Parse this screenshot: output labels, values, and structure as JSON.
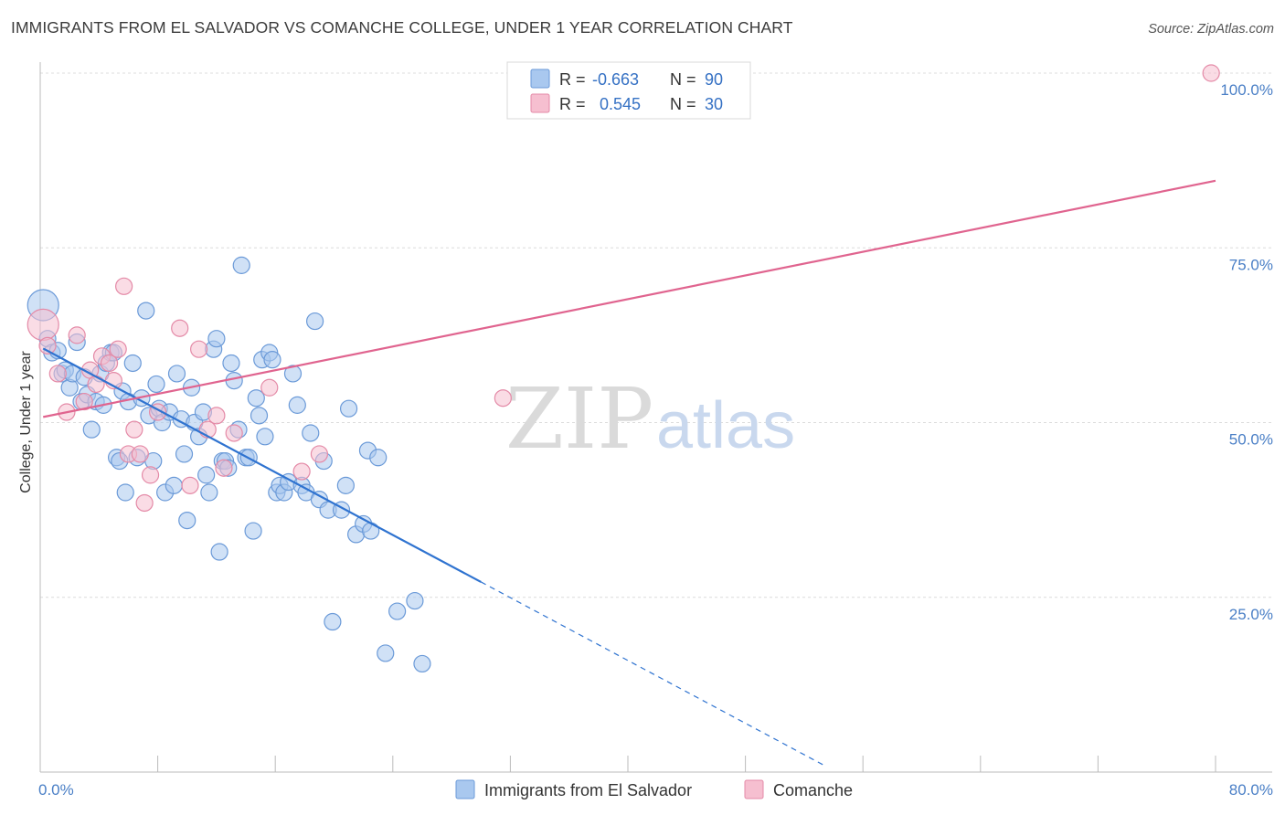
{
  "header": {
    "title": "IMMIGRANTS FROM EL SALVADOR VS COMANCHE COLLEGE, UNDER 1 YEAR CORRELATION CHART",
    "source": "Source: ZipAtlas.com"
  },
  "watermark": {
    "zip": "ZIP",
    "atlas": "atlas"
  },
  "legend": {
    "rows": [
      {
        "r_label": "R =",
        "r_value": "-0.663",
        "n_label": "N =",
        "n_value": "90",
        "color": "#a9c8ef",
        "stroke": "#6b9ad8"
      },
      {
        "r_label": "R =",
        "r_value": "0.545",
        "n_label": "N =",
        "n_value": "30",
        "color": "#f6bfd0",
        "stroke": "#e48aa7"
      }
    ]
  },
  "chart_data": {
    "type": "scatter",
    "title": "IMMIGRANTS FROM EL SALVADOR VS COMANCHE COLLEGE, UNDER 1 YEAR CORRELATION CHART",
    "xlabel": "",
    "ylabel": "College, Under 1 year",
    "xlim": [
      0,
      80
    ],
    "ylim": [
      0,
      100
    ],
    "x_ticks": [
      "0.0%",
      "80.0%"
    ],
    "y_ticks": [
      {
        "value": 25,
        "label": "25.0%"
      },
      {
        "value": 50,
        "label": "50.0%"
      },
      {
        "value": 75,
        "label": "75.0%"
      },
      {
        "value": 100,
        "label": "100.0%"
      }
    ],
    "grid": true,
    "legend_position": "bottom",
    "series": [
      {
        "name": "Immigrants from El Salvador",
        "color": "#a9c8ef",
        "stroke": "#6b9ad8",
        "line_color": "#2f73d0",
        "trend": {
          "x_start": 0.2,
          "y_start": 60.6,
          "x_solid_end": 30,
          "y_solid_end": 27.2,
          "x_dash_end": 53.5,
          "y_dash_end": 0.8
        },
        "points": [
          [
            0.2,
            66.8,
            "big"
          ],
          [
            0.5,
            62.0
          ],
          [
            0.8,
            60.0
          ],
          [
            1.2,
            60.3
          ],
          [
            1.5,
            57.0
          ],
          [
            1.7,
            57.5
          ],
          [
            2.0,
            55.0
          ],
          [
            2.2,
            57.0
          ],
          [
            2.5,
            61.5
          ],
          [
            2.8,
            53.0
          ],
          [
            3.0,
            56.5
          ],
          [
            3.2,
            54.0
          ],
          [
            3.5,
            49.0
          ],
          [
            3.8,
            53.0
          ],
          [
            4.1,
            57.0
          ],
          [
            4.3,
            52.5
          ],
          [
            4.5,
            58.5
          ],
          [
            4.8,
            60.0
          ],
          [
            5.0,
            60.0
          ],
          [
            5.2,
            45.0
          ],
          [
            5.4,
            44.5
          ],
          [
            5.6,
            54.5
          ],
          [
            5.8,
            40.0
          ],
          [
            6.0,
            53.0
          ],
          [
            6.3,
            58.5
          ],
          [
            6.6,
            45.0
          ],
          [
            6.9,
            53.5
          ],
          [
            7.2,
            66.0
          ],
          [
            7.4,
            51.0
          ],
          [
            7.7,
            44.5
          ],
          [
            7.9,
            55.5
          ],
          [
            8.1,
            52.0
          ],
          [
            8.3,
            50.0
          ],
          [
            8.5,
            40.0
          ],
          [
            8.8,
            51.5
          ],
          [
            9.1,
            41.0
          ],
          [
            9.3,
            57.0
          ],
          [
            9.6,
            50.5
          ],
          [
            9.8,
            45.5
          ],
          [
            10.0,
            36.0
          ],
          [
            10.3,
            55.0
          ],
          [
            10.5,
            50.0
          ],
          [
            10.8,
            48.0
          ],
          [
            11.1,
            51.5
          ],
          [
            11.3,
            42.5
          ],
          [
            11.5,
            40.0
          ],
          [
            11.8,
            60.5
          ],
          [
            12.0,
            62.0
          ],
          [
            12.2,
            31.5
          ],
          [
            12.4,
            44.5
          ],
          [
            12.6,
            44.5
          ],
          [
            12.8,
            43.5
          ],
          [
            13.0,
            58.5
          ],
          [
            13.2,
            56.0
          ],
          [
            13.5,
            49.0
          ],
          [
            13.7,
            72.5
          ],
          [
            14.0,
            45.0
          ],
          [
            14.2,
            45.0
          ],
          [
            14.5,
            34.5
          ],
          [
            14.7,
            53.5
          ],
          [
            14.9,
            51.0
          ],
          [
            15.1,
            59.0
          ],
          [
            15.3,
            48.0
          ],
          [
            15.6,
            60.0
          ],
          [
            15.8,
            59.0
          ],
          [
            16.1,
            40.0
          ],
          [
            16.3,
            41.0
          ],
          [
            16.6,
            40.0
          ],
          [
            16.9,
            41.5
          ],
          [
            17.2,
            57.0
          ],
          [
            17.5,
            52.5
          ],
          [
            17.8,
            41.0
          ],
          [
            18.1,
            40.0
          ],
          [
            18.4,
            48.5
          ],
          [
            18.7,
            64.5
          ],
          [
            19.0,
            39.0
          ],
          [
            19.3,
            44.5
          ],
          [
            19.6,
            37.5
          ],
          [
            19.9,
            21.5
          ],
          [
            20.5,
            37.5
          ],
          [
            21.0,
            52.0
          ],
          [
            20.8,
            41.0
          ],
          [
            21.5,
            34.0
          ],
          [
            22.0,
            35.5
          ],
          [
            22.5,
            34.5
          ],
          [
            22.3,
            46.0
          ],
          [
            23.0,
            45.0
          ],
          [
            23.5,
            17.0
          ],
          [
            24.3,
            23.0
          ],
          [
            25.5,
            24.5
          ],
          [
            26.0,
            15.5
          ]
        ]
      },
      {
        "name": "Comanche",
        "color": "#f6bfd0",
        "stroke": "#e48aa7",
        "line_color": "#e0648f",
        "trend": {
          "x_start": 0.2,
          "y_start": 50.8,
          "x_end": 80,
          "y_end": 84.6
        },
        "points": [
          [
            0.2,
            64.0,
            "big"
          ],
          [
            0.5,
            61.0
          ],
          [
            1.2,
            57.0
          ],
          [
            1.8,
            51.5
          ],
          [
            2.5,
            62.5
          ],
          [
            3.0,
            53.0
          ],
          [
            3.4,
            57.5
          ],
          [
            3.8,
            55.5
          ],
          [
            4.2,
            59.5
          ],
          [
            4.7,
            58.5
          ],
          [
            5.0,
            56.0
          ],
          [
            5.3,
            60.5
          ],
          [
            5.7,
            69.5
          ],
          [
            6.0,
            45.5
          ],
          [
            6.4,
            49.0
          ],
          [
            6.8,
            45.5
          ],
          [
            7.1,
            38.5
          ],
          [
            7.5,
            42.5
          ],
          [
            8.0,
            51.5
          ],
          [
            9.5,
            63.5
          ],
          [
            10.2,
            41.0
          ],
          [
            10.8,
            60.5
          ],
          [
            11.4,
            49.0
          ],
          [
            12.0,
            51.0
          ],
          [
            12.5,
            43.5
          ],
          [
            13.2,
            48.5
          ],
          [
            15.6,
            55.0
          ],
          [
            17.8,
            43.0
          ],
          [
            19.0,
            45.5
          ],
          [
            31.5,
            53.5
          ],
          [
            79.7,
            100.0
          ]
        ]
      }
    ]
  },
  "bottom_legend": {
    "items": [
      {
        "label": "Immigrants from El Salvador",
        "color": "#a9c8ef",
        "stroke": "#6b9ad8"
      },
      {
        "label": "Comanche",
        "color": "#f6bfd0",
        "stroke": "#e48aa7"
      }
    ]
  }
}
